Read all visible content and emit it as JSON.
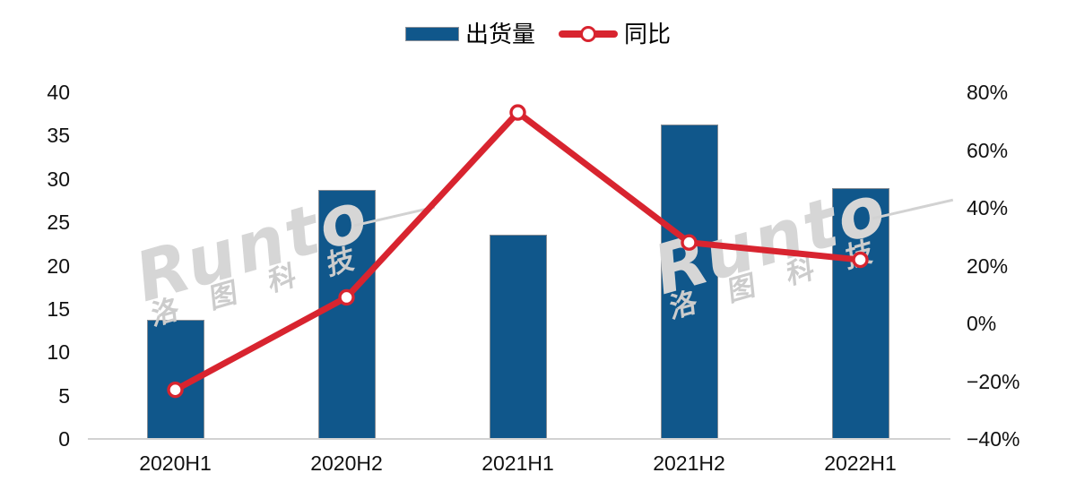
{
  "legend": {
    "bar_label": "出货量",
    "line_label": "同比"
  },
  "watermark": {
    "brand": "Runto",
    "cn": "洛图科技"
  },
  "colors": {
    "bar": "#10578B",
    "bar_border": "#858C94",
    "line": "#D8242F",
    "marker_fill": "#FFFFFF",
    "axis_line": "#D2D2D2",
    "text": "#111111",
    "watermark": "#D6D6D6"
  },
  "axes": {
    "left_ticks": [
      "0",
      "5",
      "10",
      "15",
      "20",
      "25",
      "30",
      "35",
      "40"
    ],
    "right_ticks": [
      "80%",
      "60%",
      "40%",
      "20%",
      "0%",
      "−20%",
      "−40%"
    ],
    "x_labels": [
      "2020H1",
      "2020H2",
      "2021H1",
      "2021H2",
      "2022H1"
    ]
  },
  "chart_data": {
    "type": "bar",
    "combo": "bar+line",
    "categories": [
      "2020H1",
      "2020H2",
      "2021H1",
      "2021H2",
      "2022H1"
    ],
    "series": [
      {
        "name": "出货量",
        "type": "bar",
        "axis": "left",
        "values": [
          13.7,
          28.7,
          23.6,
          36.3,
          28.9
        ]
      },
      {
        "name": "同比",
        "type": "line",
        "axis": "right",
        "unit": "percent",
        "values": [
          -23,
          9,
          73,
          28,
          22
        ]
      }
    ],
    "left_axis": {
      "min": 0,
      "max": 40,
      "tick_step": 5
    },
    "right_axis": {
      "min": -40,
      "max": 80,
      "tick_step": 20,
      "format": "percent"
    },
    "grid": false,
    "legend_position": "top-center",
    "xlabel": "",
    "ylabel": ""
  }
}
